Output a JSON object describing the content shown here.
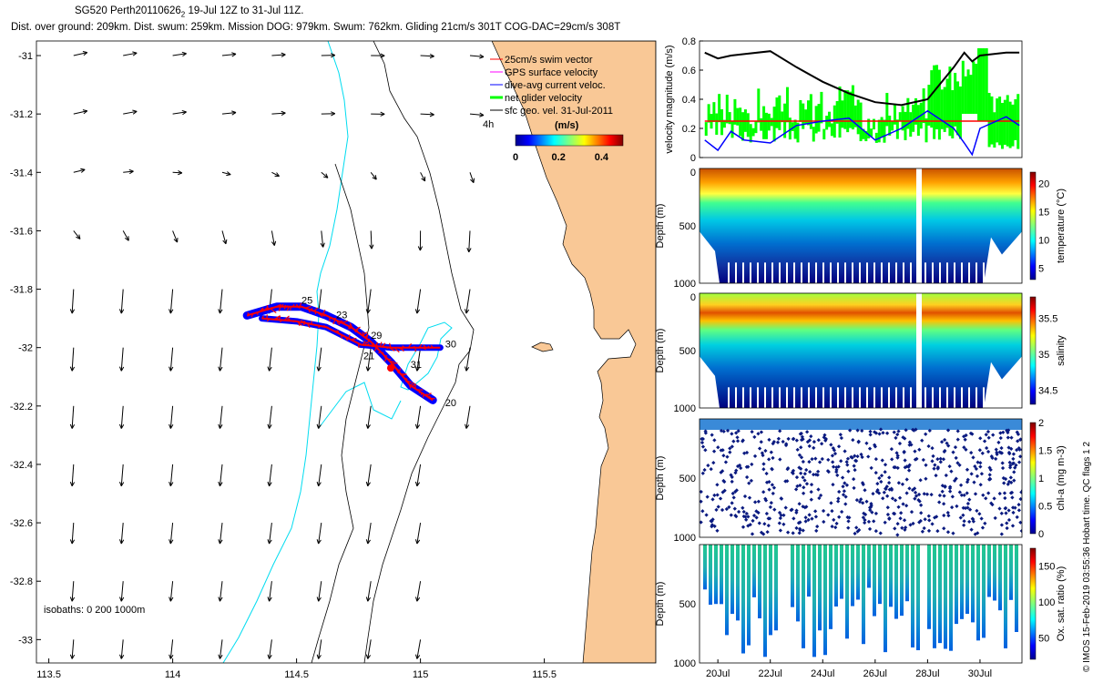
{
  "title": "SG520 Perth20110626",
  "title_sub": "2",
  "title_range": " 19-Jul 12Z to 31-Jul 11Z.",
  "subtitle": "Dist. over ground: 209km. Dist. swum: 259km. Mission DOG: 979km. Swum: 762km. Gliding 21cm/s 301T COG-DAC=29cm/s 308T",
  "credit": "© IMOS 15-Feb-2019 03:55:36 Hobart time. QC flags 1  2",
  "colors": {
    "land": "#f9c896",
    "isobath0": "#00dcf0",
    "isobath": "#000000",
    "glider_red": "#ff0000",
    "glider_blue": "#0000ff",
    "net_green": "#00ff00",
    "black": "#000000"
  },
  "chart_data": [
    {
      "type": "map",
      "name": "track-map",
      "x_ticks": [
        113.5,
        114,
        114.5,
        115,
        115.5
      ],
      "y_ticks": [
        -31,
        -31.2,
        -31.4,
        -31.6,
        -31.8,
        -32,
        -32.2,
        -32.4,
        -32.6,
        -32.8,
        -33
      ],
      "xlim": [
        113.45,
        115.95
      ],
      "ylim": [
        -33.08,
        -30.95
      ],
      "legend": {
        "placement": "top-right",
        "entries": [
          "25cm/s swim vector",
          "GPS surface velocity",
          "dive-avg current veloc.",
          "net glider velocity",
          "sfc geo. vel. 31-Jul-2011"
        ],
        "extra": "4h"
      },
      "colorbar": {
        "label": "(m/s)",
        "ticks": [
          "0",
          "0.2",
          "0.4"
        ],
        "range": [
          0,
          0.5
        ]
      },
      "isobath_label": "isobaths: 0   200   1000m",
      "day_labels": [
        {
          "label": "25",
          "lon": 114.52,
          "lat": -31.85
        },
        {
          "label": "23",
          "lon": 114.66,
          "lat": -31.9
        },
        {
          "label": "29",
          "lon": 114.8,
          "lat": -31.97
        },
        {
          "label": "21",
          "lon": 114.77,
          "lat": -32.04
        },
        {
          "label": "31",
          "lon": 114.96,
          "lat": -32.07
        },
        {
          "label": "30",
          "lon": 115.1,
          "lat": -32.0
        },
        {
          "label": "20",
          "lon": 115.1,
          "lat": -32.2
        }
      ],
      "track": [
        [
          114.3,
          -31.89
        ],
        [
          114.42,
          -31.86
        ],
        [
          114.52,
          -31.86
        ],
        [
          114.62,
          -31.89
        ],
        [
          114.72,
          -31.93
        ],
        [
          114.8,
          -31.98
        ],
        [
          114.88,
          -32.05
        ],
        [
          114.96,
          -32.13
        ],
        [
          115.05,
          -32.18
        ]
      ],
      "track2": [
        [
          114.36,
          -31.9
        ],
        [
          114.5,
          -31.91
        ],
        [
          114.62,
          -31.93
        ],
        [
          114.76,
          -31.99
        ],
        [
          114.88,
          -32.0
        ],
        [
          115.08,
          -32.0
        ]
      ],
      "current_vectors_sample": [
        [
          113.6,
          -31.0,
          0.08,
          -0.02
        ],
        [
          114.0,
          -31.2,
          0.1,
          0.03
        ],
        [
          114.4,
          -31.6,
          0.02,
          -0.15
        ],
        [
          114.8,
          -32.4,
          -0.02,
          -0.2
        ],
        [
          115.0,
          -32.8,
          -0.03,
          -0.2
        ]
      ]
    },
    {
      "type": "line",
      "name": "velocity-panel",
      "ylabel": "velocity magnitude (m/s)",
      "ylim": [
        0,
        0.8
      ],
      "y_ticks": [
        0,
        0.2,
        0.4,
        0.6,
        0.8
      ],
      "x": [
        19.5,
        20,
        20.5,
        21,
        22,
        23,
        24,
        25,
        26,
        27,
        28,
        29,
        29.4,
        29.7,
        30,
        31,
        31.5
      ],
      "series": [
        {
          "name": "black-line",
          "values": [
            0.72,
            0.68,
            0.7,
            0.71,
            0.73,
            0.62,
            0.52,
            0.44,
            0.38,
            0.36,
            0.4,
            0.62,
            0.72,
            0.66,
            0.7,
            0.72,
            0.72
          ]
        },
        {
          "name": "red-line",
          "values": [
            0.25,
            0.25,
            0.25,
            0.25,
            0.25,
            0.25,
            0.25,
            0.25,
            0.25,
            0.25,
            0.25,
            0.25,
            0.25,
            0.25,
            0.25,
            0.25,
            0.25
          ]
        },
        {
          "name": "blue-line",
          "values": [
            0.12,
            0.05,
            0.18,
            0.12,
            0.1,
            0.22,
            0.25,
            0.27,
            0.12,
            0.2,
            0.32,
            0.2,
            0.1,
            0.02,
            0.2,
            0.28,
            0.22
          ]
        }
      ]
    },
    {
      "type": "heatmap",
      "name": "temperature-panel",
      "ylabel": "Depth (m)",
      "cbar_label": "temperature (°C)",
      "cbar_ticks": [
        "5",
        "10",
        "15",
        "20"
      ],
      "depth_ticks": [
        "0",
        "500",
        "1000"
      ],
      "cbar_range": [
        3,
        22
      ]
    },
    {
      "type": "heatmap",
      "name": "salinity-panel",
      "ylabel": "Depth (m)",
      "cbar_label": "salinity",
      "cbar_ticks": [
        "34.5",
        "35",
        "35.5"
      ],
      "depth_ticks": [
        "0",
        "500",
        "1000"
      ],
      "cbar_range": [
        34.3,
        35.8
      ]
    },
    {
      "type": "scatter",
      "name": "chla-panel",
      "ylabel": "Depth (m)",
      "cbar_label": "chl-a (mg m-3)",
      "cbar_ticks": [
        "0",
        "0.5",
        "1",
        "1.5",
        "2"
      ],
      "depth_ticks": [
        "500",
        "1000"
      ],
      "cbar_range": [
        0,
        2
      ]
    },
    {
      "type": "heatmap",
      "name": "oxygen-panel",
      "ylabel": "Depth (m)",
      "cbar_label": "Ox. sat. ratio (%)",
      "cbar_ticks": [
        "50",
        "100",
        "150"
      ],
      "depth_ticks": [
        "500",
        "1000"
      ],
      "cbar_range": [
        20,
        175
      ],
      "x_labels": [
        "20Jul",
        "22Jul",
        "24Jul",
        "26Jul",
        "28Jul",
        "30Jul"
      ]
    }
  ]
}
